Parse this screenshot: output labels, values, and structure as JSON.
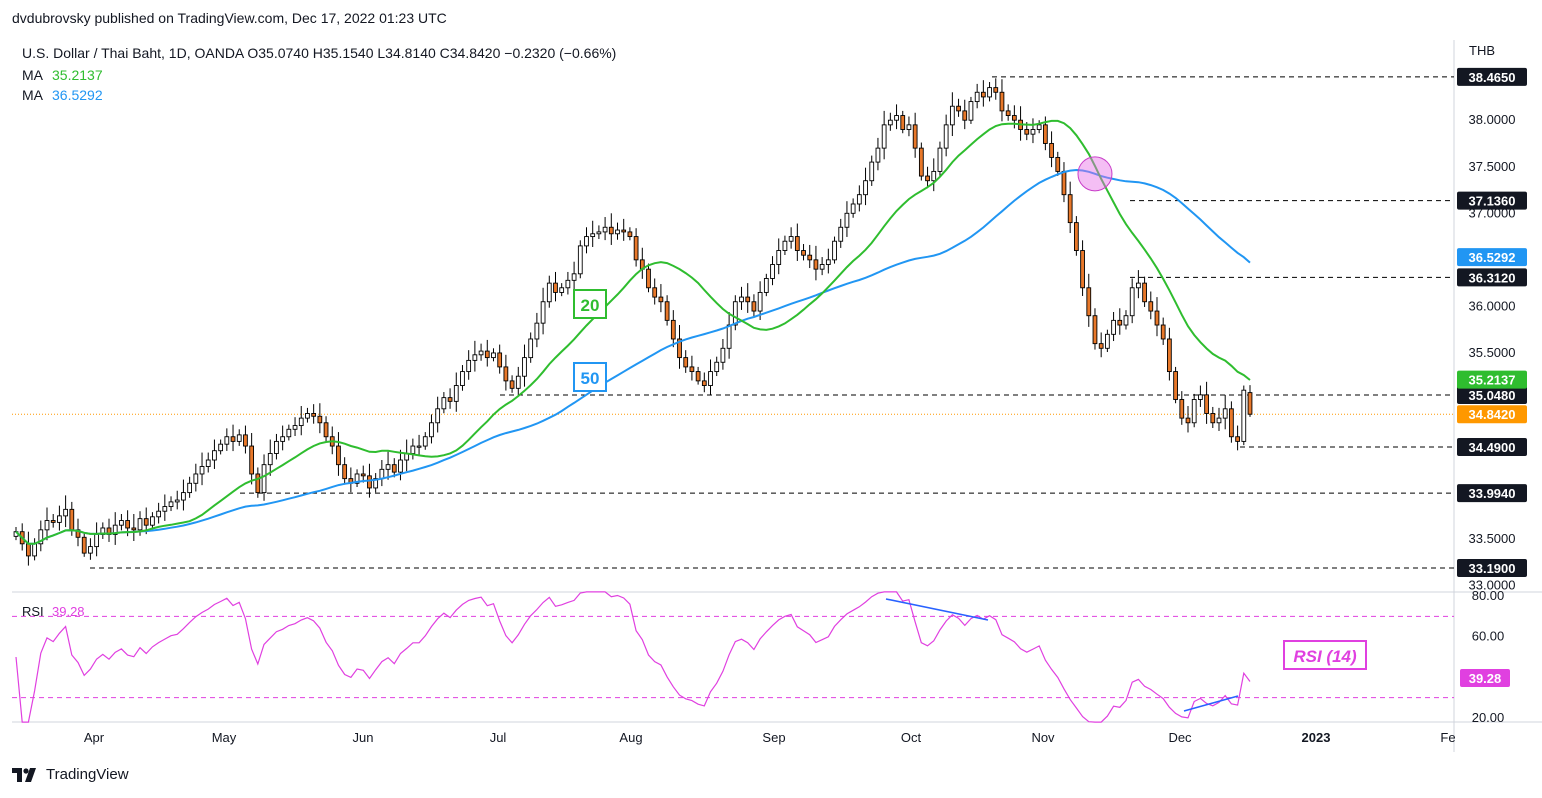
{
  "publisher_line": "dvdubrovsky published on TradingView.com, Dec 17, 2022 01:23 UTC",
  "brand": "TradingView",
  "currency": "THB",
  "chart_data": {
    "type": "candlestick",
    "symbol_line": "U.S. Dollar / Thai Baht, 1D, OANDA  O35.0740  H35.1540  L34.8140  C34.8420  −0.2320 (−0.66%)",
    "ohlc_last": {
      "open": 35.074,
      "high": 35.154,
      "low": 34.814,
      "close": 34.842,
      "change": -0.232,
      "change_pct": -0.66
    },
    "ylim": [
      33.0,
      38.6
    ],
    "y_ticks": [
      "38.0000",
      "37.5000",
      "37.0000",
      "36.0000",
      "35.5000",
      "33.5000",
      "33.0000"
    ],
    "x_ticks": [
      "Apr",
      "May",
      "Jun",
      "Jul",
      "Aug",
      "Sep",
      "Oct",
      "Nov",
      "Dec",
      "2023",
      "Fe"
    ],
    "ma_legend": [
      {
        "label": "MA",
        "value": "35.2137",
        "color": "#2fbd2f"
      },
      {
        "label": "MA",
        "value": "36.5292",
        "color": "#2196f3"
      }
    ],
    "ma_tags": [
      {
        "text": "20",
        "color": "#2fbd2f"
      },
      {
        "text": "50",
        "color": "#2196f3"
      }
    ],
    "levels": [
      {
        "value": 38.465,
        "label": "38.4650"
      },
      {
        "value": 37.136,
        "label": "37.1360"
      },
      {
        "value": 36.312,
        "label": "36.3120"
      },
      {
        "value": 35.048,
        "label": "35.0480"
      },
      {
        "value": 34.49,
        "label": "34.4900"
      },
      {
        "value": 33.994,
        "label": "33.9940"
      },
      {
        "value": 33.19,
        "label": "33.1900"
      }
    ],
    "price_tags": [
      {
        "value": 36.5292,
        "label": "36.5292",
        "color": "#2196f3"
      },
      {
        "value": 35.2137,
        "label": "35.2137",
        "color": "#2fbd2f"
      },
      {
        "value": 34.842,
        "label": "34.8420",
        "color": "#ff9800"
      }
    ],
    "closes": [
      33.58,
      33.45,
      33.32,
      33.45,
      33.6,
      33.7,
      33.68,
      33.75,
      33.82,
      33.6,
      33.52,
      33.35,
      33.42,
      33.55,
      33.62,
      33.55,
      33.65,
      33.7,
      33.62,
      33.6,
      33.72,
      33.65,
      33.74,
      33.8,
      33.85,
      33.9,
      33.92,
      34.0,
      34.1,
      34.2,
      34.28,
      34.35,
      34.45,
      34.52,
      34.6,
      34.55,
      34.62,
      34.5,
      34.2,
      34.0,
      34.3,
      34.42,
      34.55,
      34.6,
      34.68,
      34.72,
      34.8,
      34.85,
      34.82,
      34.75,
      34.6,
      34.5,
      34.3,
      34.15,
      34.1,
      34.2,
      34.18,
      34.05,
      34.15,
      34.25,
      34.3,
      34.22,
      34.35,
      34.42,
      34.5,
      34.5,
      34.6,
      34.75,
      34.9,
      35.02,
      34.98,
      35.15,
      35.3,
      35.42,
      35.48,
      35.52,
      35.45,
      35.5,
      35.35,
      35.2,
      35.12,
      35.25,
      35.45,
      35.65,
      35.82,
      36.05,
      36.25,
      36.15,
      36.2,
      36.28,
      36.35,
      36.65,
      36.75,
      36.78,
      36.8,
      36.85,
      36.78,
      36.82,
      36.8,
      36.75,
      36.5,
      36.4,
      36.2,
      36.1,
      36.05,
      35.85,
      35.65,
      35.45,
      35.35,
      35.3,
      35.2,
      35.15,
      35.3,
      35.4,
      35.55,
      35.8,
      36.05,
      36.1,
      36.05,
      35.95,
      36.15,
      36.3,
      36.45,
      36.6,
      36.7,
      36.75,
      36.6,
      36.55,
      36.5,
      36.4,
      36.45,
      36.5,
      36.7,
      36.85,
      37.0,
      37.1,
      37.2,
      37.35,
      37.55,
      37.7,
      37.95,
      38.0,
      38.05,
      37.9,
      37.95,
      37.7,
      37.4,
      37.35,
      37.45,
      37.7,
      37.95,
      38.15,
      38.1,
      38.0,
      38.2,
      38.3,
      38.25,
      38.35,
      38.3,
      38.1,
      38.05,
      38.0,
      37.9,
      37.85,
      37.9,
      37.95,
      37.75,
      37.6,
      37.45,
      37.2,
      36.9,
      36.6,
      36.2,
      35.9,
      35.6,
      35.55,
      35.7,
      35.85,
      35.8,
      35.9,
      36.2,
      36.25,
      36.05,
      35.95,
      35.8,
      35.65,
      35.3,
      35.0,
      34.8,
      34.75,
      35.0,
      35.05,
      34.85,
      34.75,
      34.8,
      34.9,
      34.6,
      34.55,
      35.1,
      34.842
    ]
  }
}
